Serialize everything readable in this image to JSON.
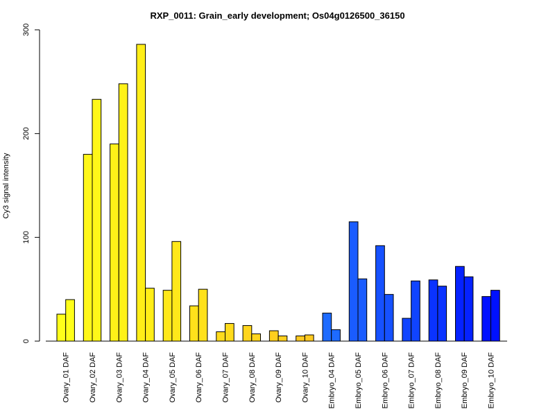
{
  "chart_data": {
    "type": "bar",
    "title": "RXP_0011: Grain_early development; Os04g0126500_36150",
    "xlabel": "",
    "ylabel": "Cy3 signal intensity",
    "ylim": [
      0,
      300
    ],
    "yticks": [
      0,
      100,
      200,
      300
    ],
    "grid": false,
    "categories": [
      "Ovary_01 DAF",
      "Ovary_02 DAF",
      "Ovary_03 DAF",
      "Ovary_04 DAF",
      "Ovary_05 DAF",
      "Ovary_06 DAF",
      "Ovary_07 DAF",
      "Ovary_08 DAF",
      "Ovary_09 DAF",
      "Ovary_10 DAF",
      "Embryo_04 DAF",
      "Embryo_05 DAF",
      "Embryo_06 DAF",
      "Embryo_07 DAF",
      "Embryo_08 DAF",
      "Embryo_09 DAF",
      "Embryo_10 DAF"
    ],
    "colors": [
      "#FFFF1A",
      "#FFF719",
      "#FFF218",
      "#FFEE17",
      "#FFE81A",
      "#FFE11B",
      "#FFDB1C",
      "#FFD51D",
      "#FFCF1E",
      "#FFC920",
      "#1E6BFF",
      "#1A5CFF",
      "#1651FF",
      "#1044FF",
      "#0A33FF",
      "#0522FF",
      "#0011FF"
    ],
    "series": [
      {
        "values": [
          26,
          180,
          190,
          286,
          49,
          34,
          9,
          15,
          10,
          5,
          27,
          115,
          92,
          22,
          59,
          72,
          43
        ]
      },
      {
        "values": [
          40,
          233,
          248,
          51,
          96,
          50,
          17,
          7,
          5,
          6,
          11,
          60,
          45,
          58,
          53,
          62,
          49
        ]
      }
    ]
  }
}
